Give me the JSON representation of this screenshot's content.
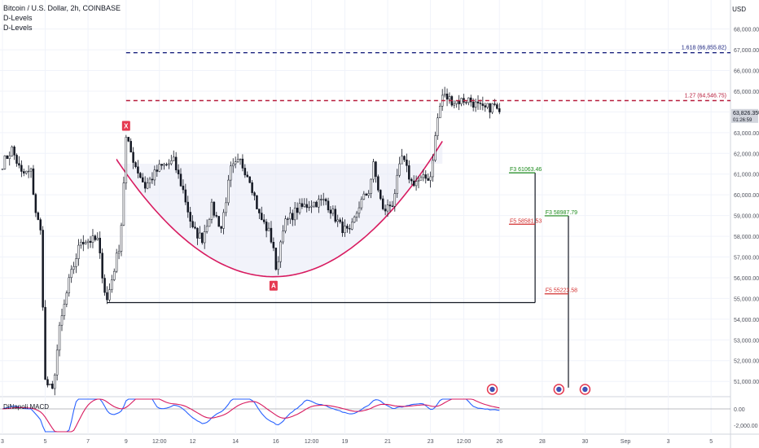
{
  "header": {
    "symbol_line": "Bitcoin / U.S. Dollar, 2h, COINBASE",
    "indicators": [
      "D-Levels",
      "D-Levels"
    ],
    "currency": "USD"
  },
  "chart_data": {
    "type": "candlestick",
    "title": "Bitcoin / U.S. Dollar, 2h, COINBASE",
    "ylim": [
      50300,
      69400
    ],
    "y_ticks": [
      51000,
      52000,
      53000,
      54000,
      55000,
      56000,
      57000,
      58000,
      59000,
      60000,
      61000,
      62000,
      63000,
      64000,
      65000,
      66000,
      67000,
      68000
    ],
    "y_tick_labels": [
      "51,000.00",
      "52,000.00",
      "53,000.00",
      "54,000.00",
      "55,000.00",
      "56,000.00",
      "57,000.00",
      "58,000.00",
      "59,000.00",
      "60,000.00",
      "61,000.00",
      "62,000.00",
      "63,000.00",
      "64,000.00",
      "65,000.00",
      "66,000.00",
      "67,000.00",
      "68,000.00"
    ],
    "x_ticks": [
      {
        "i": 0,
        "label": "3"
      },
      {
        "i": 18,
        "label": "5"
      },
      {
        "i": 36,
        "label": "7"
      },
      {
        "i": 52,
        "label": "9"
      },
      {
        "i": 66,
        "label": "12:00"
      },
      {
        "i": 80,
        "label": "12"
      },
      {
        "i": 98,
        "label": "14"
      },
      {
        "i": 115,
        "label": "16"
      },
      {
        "i": 130,
        "label": "12:00"
      },
      {
        "i": 144,
        "label": "19"
      },
      {
        "i": 162,
        "label": "21"
      },
      {
        "i": 180,
        "label": "23"
      },
      {
        "i": 194,
        "label": "12:00"
      },
      {
        "i": 209,
        "label": "26"
      },
      {
        "i": 227,
        "label": "28"
      },
      {
        "i": 245,
        "label": "30"
      },
      {
        "i": 262,
        "label": "Sep"
      },
      {
        "i": 280,
        "label": "3"
      },
      {
        "i": 298,
        "label": "5"
      }
    ],
    "last_price": "63,826.35",
    "countdown": "01:26:59",
    "hlines": [
      {
        "label": "1.618 (66,855.82)",
        "value": 66855.82,
        "color": "#1a237e",
        "from_i": 52
      },
      {
        "label": "1.27 (64,546.75)",
        "value": 64546.75,
        "color": "#b71c3c",
        "from_i": 52
      }
    ],
    "levels": [
      {
        "label": "F3 61063.46",
        "value": 61063.46,
        "color": "#1b8a1b",
        "from_i": 213,
        "to_i": 224
      },
      {
        "label": "F5 58581.53",
        "value": 58581.53,
        "color": "#d32f2f",
        "from_i": 213,
        "to_i": 224
      },
      {
        "label": "F3 58987.79",
        "value": 58987.79,
        "color": "#1b8a1b",
        "from_i": 228,
        "to_i": 238
      },
      {
        "label": "F5 55223.58",
        "value": 55223.58,
        "color": "#d32f2f",
        "from_i": 228,
        "to_i": 238
      }
    ],
    "markers": [
      {
        "label": "X",
        "i": 52,
        "value": 62700
      },
      {
        "label": "A",
        "i": 114,
        "value": 56050
      }
    ],
    "news_events_i": [
      206,
      234,
      245
    ],
    "macd": {
      "label": "DiNapoli MACD",
      "y_tick_labels": [
        "0.00",
        "-2,000.00"
      ]
    }
  }
}
